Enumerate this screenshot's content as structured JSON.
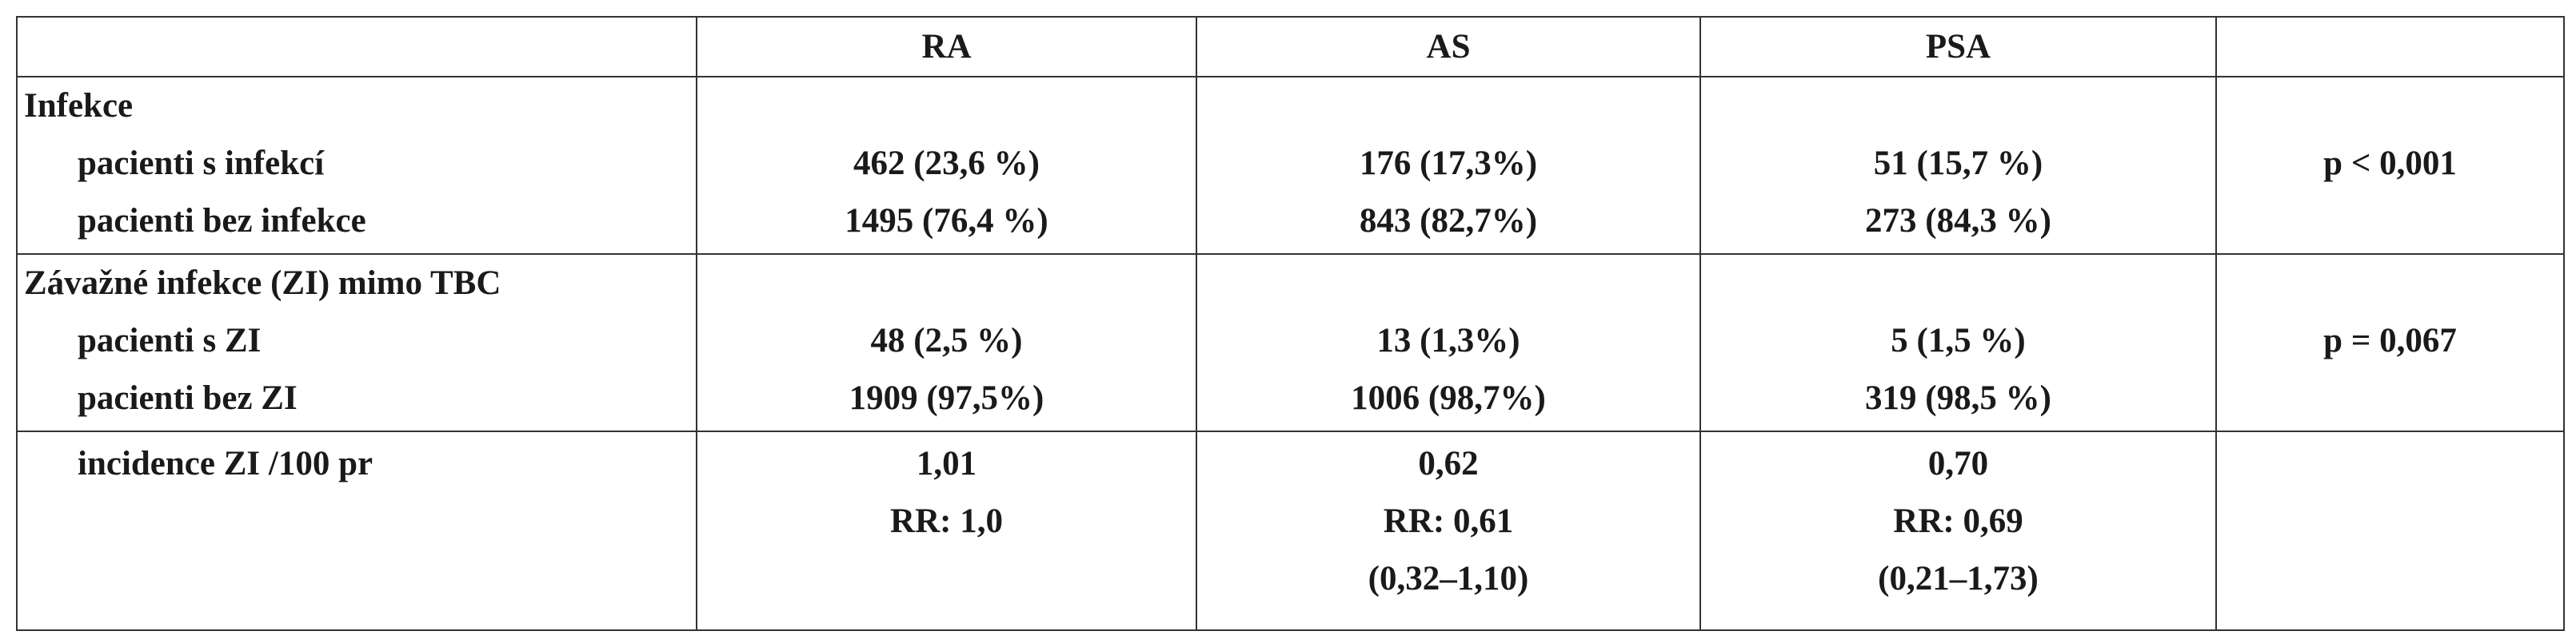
{
  "table": {
    "columns": [
      "RA",
      "AS",
      "PSA"
    ],
    "sections": [
      {
        "title": "Infekce",
        "rows": [
          {
            "label": "pacienti s infekcí",
            "values": [
              "462 (23,6 %)",
              "176 (17,3%)",
              "51 (15,7 %)"
            ]
          },
          {
            "label": "pacienti bez infekce",
            "values": [
              "1495 (76,4 %)",
              "843 (82,7%)",
              "273 (84,3 %)"
            ]
          }
        ],
        "p": "p < 0,001"
      },
      {
        "title": "Závažné infekce (ZI) mimo TBC",
        "rows": [
          {
            "label": "pacienti s ZI",
            "values": [
              "48 (2,5 %)",
              "13 (1,3%)",
              "5 (1,5 %)"
            ]
          },
          {
            "label": "pacienti bez ZI",
            "values": [
              "1909 (97,5%)",
              "1006 (98,7%)",
              "319 (98,5 %)"
            ]
          }
        ],
        "p": "p = 0,067"
      }
    ],
    "incidence": {
      "label": "incidence ZI /100 pr",
      "values": [
        [
          "1,01",
          "RR: 1,0"
        ],
        [
          "0,62",
          "RR: 0,61",
          "(0,32–1,10)"
        ],
        [
          "0,70",
          "RR: 0,69",
          "(0,21–1,73)"
        ]
      ]
    }
  }
}
